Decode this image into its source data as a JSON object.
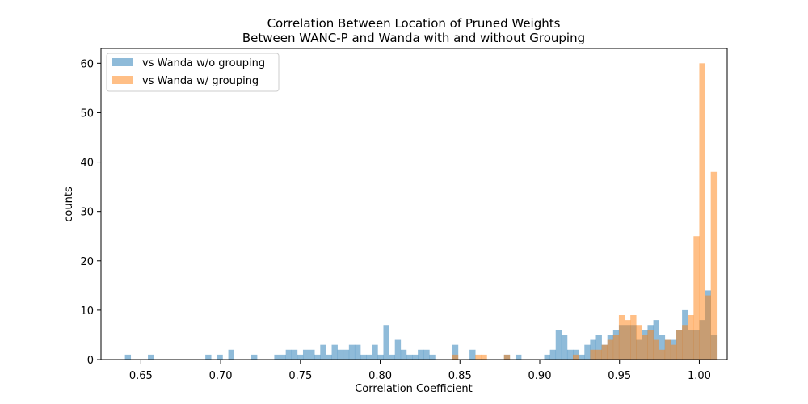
{
  "chart_data": {
    "type": "bar",
    "title_lines": [
      "Correlation Between Location of Pruned Weights",
      "Between WANC-P and Wanda with and without Grouping"
    ],
    "xlabel": "Correlation Coefficient",
    "ylabel": "counts",
    "xlim": [
      0.625,
      1.0175
    ],
    "ylim": [
      0,
      63
    ],
    "xticks": [
      0.65,
      0.7,
      0.75,
      0.8,
      0.85,
      0.9,
      0.95,
      1.0
    ],
    "xtick_labels": [
      "0.65",
      "0.70",
      "0.75",
      "0.80",
      "0.85",
      "0.90",
      "0.95",
      "1.00"
    ],
    "yticks": [
      0,
      10,
      20,
      30,
      40,
      50,
      60
    ],
    "ytick_labels": [
      "0",
      "10",
      "20",
      "30",
      "40",
      "50",
      "60"
    ],
    "bin_start": 0.64,
    "bin_width": 0.0036,
    "legend_position": "upper-left",
    "grid": false,
    "series": [
      {
        "name": "vs Wanda w/o grouping",
        "color": "#1f77b4",
        "alpha": 0.5,
        "values": [
          1,
          0,
          0,
          0,
          1,
          0,
          0,
          0,
          0,
          0,
          0,
          0,
          0,
          0,
          1,
          0,
          1,
          0,
          2,
          0,
          0,
          0,
          1,
          0,
          0,
          0,
          1,
          1,
          2,
          2,
          1,
          2,
          2,
          1,
          3,
          1,
          3,
          2,
          2,
          3,
          3,
          1,
          1,
          3,
          1,
          7,
          1,
          4,
          2,
          1,
          1,
          2,
          2,
          1,
          0,
          0,
          0,
          3,
          0,
          0,
          2,
          0,
          0,
          0,
          0,
          0,
          1,
          0,
          1,
          0,
          0,
          0,
          0,
          1,
          2,
          6,
          5,
          2,
          2,
          1,
          3,
          4,
          5,
          3,
          5,
          6,
          7,
          7,
          7,
          4,
          6,
          7,
          8,
          5,
          4,
          4,
          6,
          10,
          6,
          6,
          8,
          14,
          5,
          0,
          0,
          0,
          0,
          0,
          0,
          0,
          0
        ]
      },
      {
        "name": "vs Wanda w/ grouping",
        "color": "#ff7f0e",
        "alpha": 0.5,
        "values": [
          0,
          0,
          0,
          0,
          0,
          0,
          0,
          0,
          0,
          0,
          0,
          0,
          0,
          0,
          0,
          0,
          0,
          0,
          0,
          0,
          0,
          0,
          0,
          0,
          0,
          0,
          0,
          0,
          0,
          0,
          0,
          0,
          0,
          0,
          0,
          0,
          0,
          0,
          0,
          0,
          0,
          0,
          0,
          0,
          0,
          0,
          0,
          0,
          0,
          0,
          0,
          0,
          0,
          0,
          0,
          0,
          0,
          1,
          0,
          0,
          0,
          1,
          1,
          0,
          0,
          0,
          1,
          0,
          0,
          0,
          0,
          0,
          0,
          0,
          0,
          0,
          0,
          0,
          1,
          0,
          0,
          2,
          2,
          3,
          4,
          5,
          9,
          8,
          9,
          7,
          5,
          6,
          4,
          2,
          4,
          3,
          6,
          7,
          9,
          25,
          60,
          13,
          38,
          0,
          0,
          0,
          0,
          0,
          0,
          0,
          0
        ]
      }
    ]
  }
}
